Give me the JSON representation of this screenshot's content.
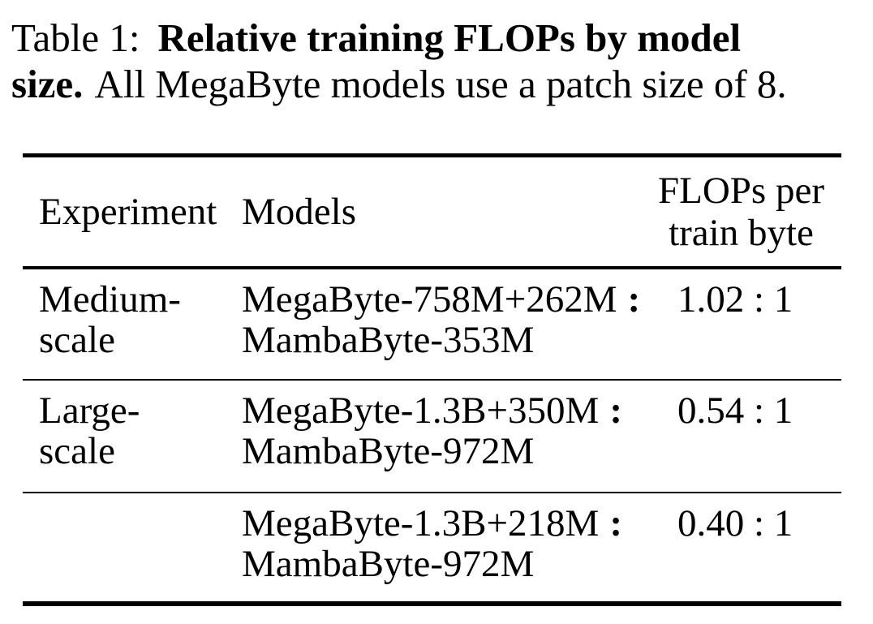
{
  "caption": {
    "line1_normal": "Table 1:",
    "line1_bold": "Relative training FLOPs by model",
    "line2_bold": "size.",
    "line2_normal": "All MegaByte models use a patch size of 8."
  },
  "table": {
    "header": {
      "experiment": "Experiment",
      "models": "Models",
      "flops_line1": "FLOPs per",
      "flops_line2": "train byte"
    },
    "rows": [
      {
        "experiment_line1": "Medium-",
        "experiment_line2": "scale",
        "megabyte_model": "MegaByte-758M+262M",
        "colon": ":",
        "mambabyte_model": "MambaByte-353M",
        "flops_ratio": "1.02 : 1"
      },
      {
        "experiment_line1": "Large-",
        "experiment_line2": "scale",
        "megabyte_model": "MegaByte-1.3B+350M",
        "colon": ":",
        "mambabyte_model": "MambaByte-972M",
        "flops_ratio": "0.54 : 1"
      },
      {
        "experiment_line1": "",
        "experiment_line2": "",
        "megabyte_model": "MegaByte-1.3B+218M",
        "colon": ":",
        "mambabyte_model": "MambaByte-972M",
        "flops_ratio": "0.40 : 1"
      }
    ]
  },
  "colors": {
    "text": "#000000",
    "background": "#ffffff",
    "rule": "#000000"
  }
}
